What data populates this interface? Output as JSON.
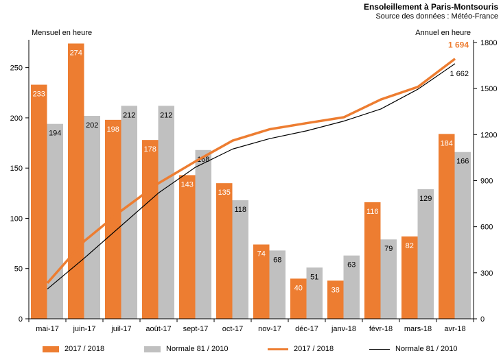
{
  "title": "Ensoleillement à Paris-Montsouris",
  "subtitle": "Source des données : Météo-France",
  "colors": {
    "orange": "#ed7d31",
    "grey": "#c0c0c0",
    "black": "#000000"
  },
  "chart_data": {
    "type": "bar",
    "categories": [
      "mai-17",
      "juin-17",
      "juil-17",
      "août-17",
      "sept-17",
      "oct-17",
      "nov-17",
      "déc-17",
      "janv-18",
      "févr-18",
      "mars-18",
      "avr-18"
    ],
    "ylabel": "Mensuel en heure",
    "y2label": "Annuel en heure",
    "ylim": [
      0,
      275
    ],
    "y2lim": [
      0,
      1800
    ],
    "yticks": [
      0,
      50,
      100,
      150,
      200,
      250
    ],
    "y2ticks": [
      0,
      300,
      600,
      900,
      1200,
      1500,
      1800
    ],
    "series": [
      {
        "name": "2017 / 2018",
        "kind": "bar",
        "axis": "left",
        "color": "#ed7d31",
        "values": [
          233,
          274,
          198,
          178,
          143,
          135,
          74,
          40,
          38,
          116,
          82,
          184
        ]
      },
      {
        "name": "Normale 81 / 2010",
        "kind": "bar",
        "axis": "left",
        "color": "#c0c0c0",
        "values": [
          194,
          202,
          212,
          212,
          168,
          118,
          68,
          51,
          63,
          79,
          129,
          166
        ]
      },
      {
        "name": "2017 / 2018",
        "kind": "line",
        "axis": "right",
        "color": "#ed7d31",
        "values": [
          233,
          507,
          705,
          883,
          1026,
          1161,
          1235,
          1275,
          1313,
          1429,
          1511,
          1694
        ],
        "end_label": "1 694"
      },
      {
        "name": "Normale 81 / 2010",
        "kind": "line",
        "axis": "right",
        "color": "#000000",
        "values": [
          194,
          396,
          608,
          820,
          988,
          1106,
          1174,
          1225,
          1288,
          1367,
          1496,
          1662
        ],
        "end_label": "1 662"
      }
    ]
  }
}
